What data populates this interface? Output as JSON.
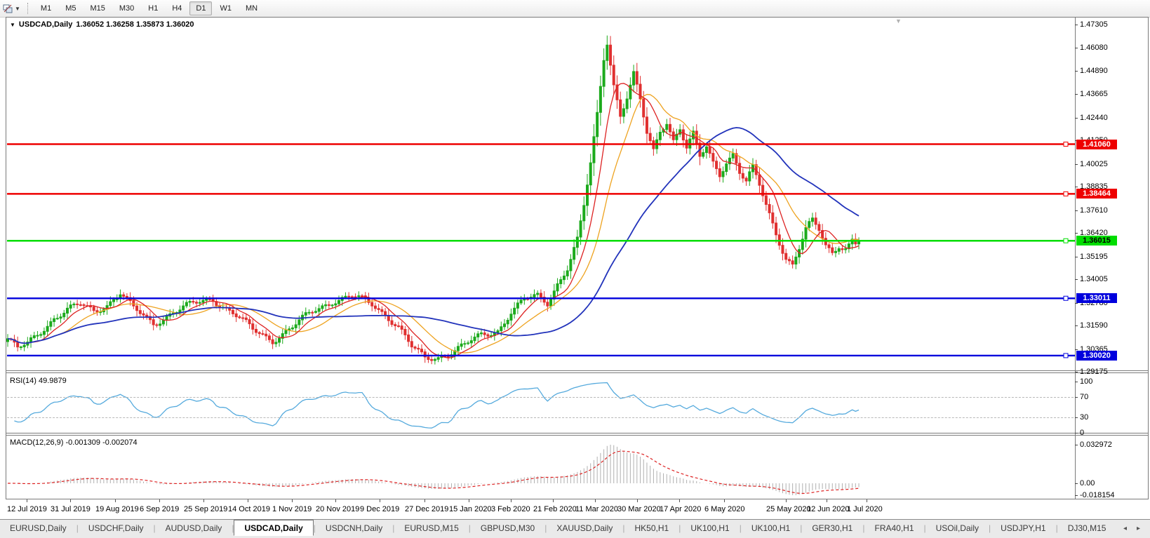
{
  "toolbar": {
    "timeframes": [
      "M1",
      "M5",
      "M15",
      "M30",
      "H1",
      "H4",
      "D1",
      "W1",
      "MN"
    ],
    "active_timeframe": "D1"
  },
  "chart": {
    "title": "USDCAD,Daily",
    "ohlc_text": "1.36052 1.36258 1.35873 1.36020",
    "price_axis_ticks": [
      "1.47305",
      "1.46080",
      "1.44890",
      "1.43665",
      "1.42440",
      "1.41250",
      "1.40025",
      "1.38835",
      "1.37610",
      "1.36420",
      "1.35195",
      "1.34005",
      "1.32780",
      "1.31590",
      "1.30365",
      "1.29175"
    ]
  },
  "rsi_panel": {
    "label": "RSI(14) 49.9879",
    "axis_ticks": [
      "100",
      "70",
      "30",
      "0"
    ],
    "levels": [
      70,
      30
    ]
  },
  "macd_panel": {
    "label": "MACD(12,26,9) -0.001309 -0.002074",
    "axis_ticks": [
      "0.032972",
      "0.00",
      "-0.018154"
    ]
  },
  "dates": [
    "12 Jul 2019",
    "31 Jul 2019",
    "19 Aug 2019",
    "6 Sep 2019",
    "25 Sep 2019",
    "14 Oct 2019",
    "1 Nov 2019",
    "20 Nov 2019",
    "9 Dec 2019",
    "27 Dec 2019",
    "15 Jan 2020",
    "3 Feb 2020",
    "21 Feb 2020",
    "11 Mar 2020",
    "30 Mar 2020",
    "17 Apr 2020",
    "6 May 2020",
    "25 May 2020",
    "12 Jun 2020",
    "1 Jul 2020"
  ],
  "tabs": {
    "items": [
      "EURUSD,Daily",
      "USDCHF,Daily",
      "AUDUSD,Daily",
      "USDCAD,Daily",
      "USDCNH,Daily",
      "EURUSD,M15",
      "GBPUSD,M30",
      "XAUUSD,Daily",
      "HK50,H1",
      "UK100,H1",
      "UK100,H1",
      "GER30,H1",
      "FRA40,H1",
      "USOil,Daily",
      "USDJPY,H1",
      "DJ30,M15"
    ],
    "active": "USDCAD,Daily",
    "scroll_left": "◂",
    "scroll_right": "▸"
  },
  "colors": {
    "bull": "#1caa1c",
    "bear": "#e03030",
    "ma_fast": "#dd2222",
    "ma_mid": "#eea320",
    "ma_slow": "#2233bb",
    "rsi_line": "#55aadd",
    "macd_hist": "#b0b0b0",
    "macd_signal": "#dd2222",
    "hline_red": "#ee0000",
    "hline_green": "#00dd00",
    "hline_blue": "#0000dd"
  },
  "chart_data": {
    "type": "candlestick",
    "symbol": "USDCAD",
    "period": "Daily",
    "open": 1.36052,
    "high": 1.36258,
    "low": 1.35873,
    "close": 1.3602,
    "bars": 258,
    "price_anchors": [
      [
        0,
        1.309
      ],
      [
        3,
        1.3035
      ],
      [
        6,
        1.306
      ],
      [
        10,
        1.313
      ],
      [
        14,
        1.32
      ],
      [
        18,
        1.324
      ],
      [
        22,
        1.3265
      ],
      [
        26,
        1.3235
      ],
      [
        30,
        1.327
      ],
      [
        34,
        1.333
      ],
      [
        38,
        1.3245
      ],
      [
        44,
        1.317
      ],
      [
        50,
        1.323
      ],
      [
        56,
        1.327
      ],
      [
        62,
        1.33
      ],
      [
        68,
        1.3225
      ],
      [
        74,
        1.3135
      ],
      [
        80,
        1.3085
      ],
      [
        86,
        1.315
      ],
      [
        92,
        1.323
      ],
      [
        98,
        1.329
      ],
      [
        104,
        1.331
      ],
      [
        110,
        1.327
      ],
      [
        114,
        1.322
      ],
      [
        118,
        1.3155
      ],
      [
        122,
        1.3045
      ],
      [
        126,
        1.2985
      ],
      [
        130,
        1.2995
      ],
      [
        134,
        1.3025
      ],
      [
        138,
        1.3055
      ],
      [
        143,
        1.3105
      ],
      [
        148,
        1.3135
      ],
      [
        152,
        1.323
      ],
      [
        156,
        1.329
      ],
      [
        160,
        1.331
      ],
      [
        163,
        1.328
      ],
      [
        166,
        1.338
      ],
      [
        169,
        1.346
      ],
      [
        172,
        1.36
      ],
      [
        174,
        1.378
      ],
      [
        176,
        1.4
      ],
      [
        178,
        1.426
      ],
      [
        180,
        1.456
      ],
      [
        181,
        1.4645
      ],
      [
        183,
        1.442
      ],
      [
        185,
        1.426
      ],
      [
        187,
        1.435
      ],
      [
        189,
        1.4465
      ],
      [
        191,
        1.433
      ],
      [
        193,
        1.416
      ],
      [
        195,
        1.407
      ],
      [
        197,
        1.418
      ],
      [
        199,
        1.423
      ],
      [
        201,
        1.413
      ],
      [
        203,
        1.419
      ],
      [
        205,
        1.4085
      ],
      [
        207,
        1.415
      ],
      [
        209,
        1.4035
      ],
      [
        211,
        1.409
      ],
      [
        213,
        1.401
      ],
      [
        215,
        1.3955
      ],
      [
        217,
        1.402
      ],
      [
        219,
        1.4055
      ],
      [
        221,
        1.396
      ],
      [
        223,
        1.3905
      ],
      [
        225,
        1.3975
      ],
      [
        227,
        1.389
      ],
      [
        229,
        1.379
      ],
      [
        232,
        1.3645
      ],
      [
        235,
        1.3515
      ],
      [
        237,
        1.3475
      ],
      [
        239,
        1.356
      ],
      [
        241,
        1.3655
      ],
      [
        243,
        1.37
      ],
      [
        245,
        1.366
      ],
      [
        247,
        1.358
      ],
      [
        249,
        1.3545
      ],
      [
        251,
        1.3585
      ],
      [
        253,
        1.356
      ],
      [
        255,
        1.361
      ],
      [
        256,
        1.3585
      ],
      [
        257,
        1.3602
      ]
    ],
    "horizontal_lines": [
      {
        "price": 1.4106,
        "label": "1.41060",
        "color": "red"
      },
      {
        "price": 1.38464,
        "label": "1.38464",
        "color": "red"
      },
      {
        "price": 1.36015,
        "label": "1.36015",
        "color": "green"
      },
      {
        "price": 1.33011,
        "label": "1.33011",
        "color": "blue"
      },
      {
        "price": 1.3002,
        "label": "1.30020",
        "color": "blue"
      }
    ],
    "indicators": [
      {
        "name": "RSI",
        "period": 14,
        "value": 49.9879,
        "range": [
          0,
          100
        ],
        "levels": [
          70,
          30
        ]
      },
      {
        "name": "MACD",
        "params": [
          12,
          26,
          9
        ],
        "values": [
          -0.001309,
          -0.002074
        ],
        "axis_max": 0.032972,
        "axis_min": -0.018154
      },
      {
        "name": "MA-fast",
        "period": 8
      },
      {
        "name": "MA-mid",
        "period": 17
      },
      {
        "name": "MA-slow",
        "period": 45
      }
    ],
    "y_axis_top_price": 1.47305,
    "y_axis_bottom_price": 1.29175
  }
}
